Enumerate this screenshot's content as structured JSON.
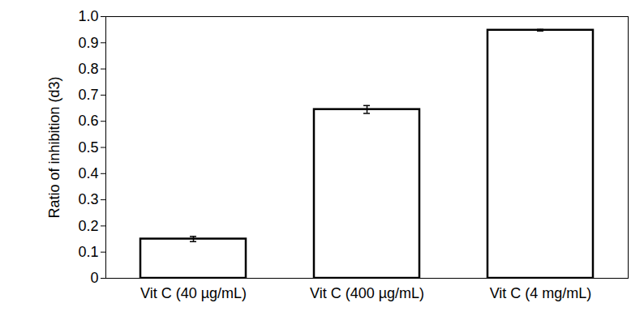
{
  "chart_data": {
    "type": "bar",
    "y_label": "Ratio of inhibition (d3)",
    "categories": [
      "Vit C (40 µg/mL)",
      "Vit C (400 µg/mL)",
      "Vit C (4 mg/mL)"
    ],
    "values": [
      0.15,
      0.645,
      0.948
    ],
    "errors": [
      0.01,
      0.015,
      0.003
    ],
    "color": "#ffffff",
    "ylim": [
      0,
      1.0
    ],
    "yticks": [
      0,
      0.1,
      0.2,
      0.3,
      0.4,
      0.5,
      0.6,
      0.7,
      0.8,
      0.9,
      {
        "value": 1.0,
        "label": "1.0"
      }
    ],
    "grid": false
  }
}
